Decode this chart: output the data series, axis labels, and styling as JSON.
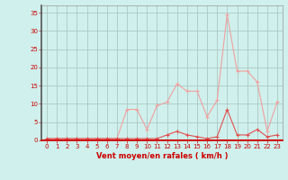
{
  "x": [
    0,
    1,
    2,
    3,
    4,
    5,
    6,
    7,
    8,
    9,
    10,
    11,
    12,
    13,
    14,
    15,
    16,
    17,
    18,
    19,
    20,
    21,
    22,
    23
  ],
  "y_avg": [
    0.5,
    0.5,
    0.5,
    0.5,
    0.5,
    0.5,
    0.5,
    0.5,
    0.5,
    0.5,
    0.5,
    0.5,
    1.5,
    2.5,
    1.5,
    1.0,
    0.5,
    1.0,
    8.5,
    1.5,
    1.5,
    3.0,
    1.0,
    1.5
  ],
  "y_gust": [
    0.5,
    0.5,
    0.5,
    0.5,
    0.5,
    0.5,
    0.5,
    0.5,
    8.5,
    8.5,
    3.0,
    9.5,
    10.5,
    15.5,
    13.5,
    13.5,
    6.5,
    11.0,
    34.5,
    19.0,
    19.0,
    16.0,
    2.5,
    10.5
  ],
  "bg_color": "#cff0ec",
  "line_color_avg": "#e05050",
  "line_color_gust": "#f0a0a0",
  "grid_color": "#adc8c4",
  "axis_color": "#cc0000",
  "tick_color": "#cc0000",
  "xlabel": "Vent moyen/en rafales ( km/h )",
  "ylim": [
    0,
    37
  ],
  "xlim": [
    -0.5,
    23.5
  ],
  "yticks": [
    0,
    5,
    10,
    15,
    20,
    25,
    30,
    35
  ],
  "xticks": [
    0,
    1,
    2,
    3,
    4,
    5,
    6,
    7,
    8,
    9,
    10,
    11,
    12,
    13,
    14,
    15,
    16,
    17,
    18,
    19,
    20,
    21,
    22,
    23
  ]
}
